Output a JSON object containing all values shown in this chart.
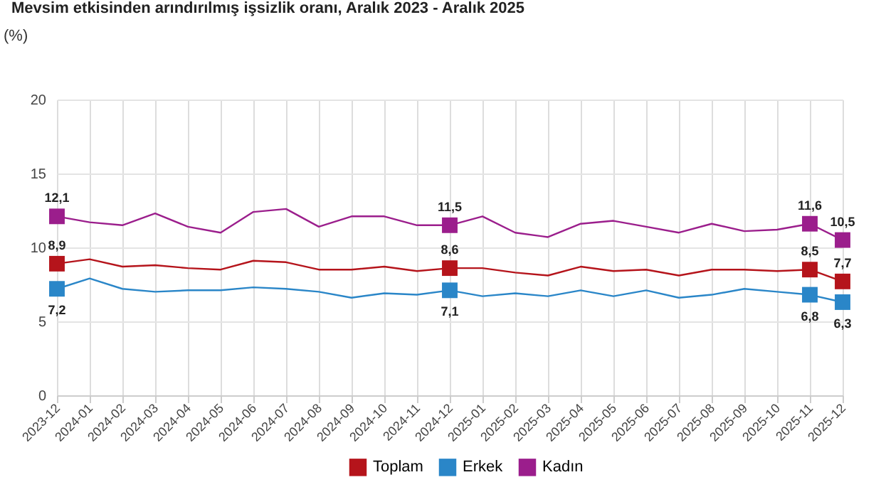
{
  "chart_data": {
    "type": "line",
    "title": "Mevsim etkisinden arındırılmış işsizlik oranı, Aralık 2023 - Aralık 2025",
    "ylabel": "(%)",
    "categories": [
      "2023-12",
      "2024-01",
      "2024-02",
      "2024-03",
      "2024-04",
      "2024-05",
      "2024-06",
      "2024-07",
      "2024-08",
      "2024-09",
      "2024-10",
      "2024-11",
      "2024-12",
      "2025-01",
      "2025-02",
      "2025-03",
      "2025-04",
      "2025-05",
      "2025-06",
      "2025-07",
      "2025-08",
      "2025-09",
      "2025-10",
      "2025-11",
      "2025-12"
    ],
    "series": [
      {
        "name": "Toplam",
        "color": "#b5141b",
        "values": [
          8.9,
          9.2,
          8.7,
          8.8,
          8.6,
          8.5,
          9.1,
          9.0,
          8.5,
          8.5,
          8.7,
          8.4,
          8.6,
          8.6,
          8.3,
          8.1,
          8.7,
          8.4,
          8.5,
          8.1,
          8.5,
          8.5,
          8.4,
          8.5,
          7.7
        ],
        "value_labels": [
          "8,9",
          null,
          null,
          null,
          null,
          null,
          null,
          null,
          null,
          null,
          null,
          null,
          "8,6",
          null,
          null,
          null,
          null,
          null,
          null,
          null,
          null,
          null,
          null,
          "8,5",
          "7,7"
        ]
      },
      {
        "name": "Erkek",
        "color": "#2a86c8",
        "values": [
          7.2,
          7.9,
          7.2,
          7.0,
          7.1,
          7.1,
          7.3,
          7.2,
          7.0,
          6.6,
          6.9,
          6.8,
          7.1,
          6.7,
          6.9,
          6.7,
          7.1,
          6.7,
          7.1,
          6.6,
          6.8,
          7.2,
          7.0,
          6.8,
          6.3
        ],
        "value_labels": [
          "7,2",
          null,
          null,
          null,
          null,
          null,
          null,
          null,
          null,
          null,
          null,
          null,
          "7,1",
          null,
          null,
          null,
          null,
          null,
          null,
          null,
          null,
          null,
          null,
          "6,8",
          "6,3"
        ]
      },
      {
        "name": "Kadın",
        "color": "#9b1e8c",
        "values": [
          12.1,
          11.7,
          11.5,
          12.3,
          11.4,
          11.0,
          12.4,
          12.6,
          11.4,
          12.1,
          12.1,
          11.5,
          11.5,
          12.1,
          11.0,
          10.7,
          11.6,
          11.8,
          11.4,
          11.0,
          11.6,
          11.1,
          11.2,
          11.6,
          10.5
        ],
        "value_labels": [
          "12,1",
          null,
          null,
          null,
          null,
          null,
          null,
          null,
          null,
          null,
          null,
          null,
          "11,5",
          null,
          null,
          null,
          null,
          null,
          null,
          null,
          null,
          null,
          null,
          "11,6",
          "10,5"
        ]
      }
    ],
    "ylim": [
      0,
      20
    ],
    "yticks": [
      0,
      5,
      10,
      15,
      20
    ],
    "grid": true,
    "legend": "bottom",
    "line_style": "solid"
  }
}
